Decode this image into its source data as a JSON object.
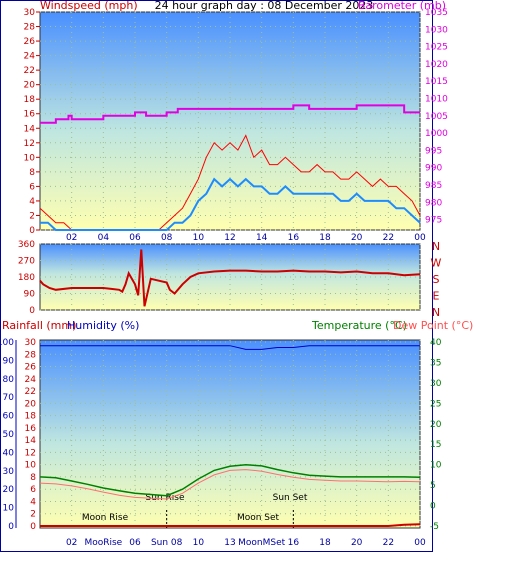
{
  "header": {
    "wind_label": "Windspeed (mph)",
    "title": "24 hour graph day : 08 December 2023",
    "baro_label": "Barometer (mb)"
  },
  "lower_header": {
    "rain_label": "Rainfall (mm)",
    "humidity_label": "Humidity (%)",
    "temp_label": "Temperature (°C)",
    "dew_label": "Dew Point (°C)"
  },
  "colors": {
    "wind": "#ff0000",
    "gust": "#ff0000",
    "avg": "#1e8cff",
    "baro": "#e000e0",
    "humidity": "#0000c0",
    "temperature": "#008000",
    "dewpoint": "#ff7070",
    "rain": "#cc0000",
    "sky_top": "#4a90ff",
    "sky_bottom": "#ffffb0"
  },
  "astro": {
    "moon_rise_label": "Moon Rise",
    "moon_set_label": "Moon Set",
    "sun_rise_label": "Sun Rise",
    "sun_set_label": "Sun Set",
    "moon_rise_tick": "MooRise",
    "moon_set_tick": "MooSet",
    "sun_rise_tick": "Sun Rise",
    "sun_rise_hour": 8.0,
    "sun_set_hour": 16.0
  },
  "chart_data": [
    {
      "type": "line",
      "name": "wind",
      "x_ticks": [
        "02",
        "04",
        "06",
        "08",
        "10",
        "12",
        "14",
        "16",
        "18",
        "20",
        "22",
        "00"
      ],
      "x_range": [
        0,
        24
      ],
      "y_left_ticks": [
        "0",
        "2",
        "4",
        "6",
        "8",
        "10",
        "12",
        "14",
        "16",
        "18",
        "20",
        "22",
        "24",
        "26",
        "28",
        "30"
      ],
      "y_left_range": [
        0,
        30
      ],
      "y_right_ticks": [
        "975",
        "980",
        "985",
        "990",
        "995",
        "1000",
        "1005",
        "1010",
        "1015",
        "1020",
        "1025",
        "1030",
        "1035"
      ],
      "y_right_range": [
        972,
        1035
      ],
      "gust_hours": [
        0,
        0.5,
        1,
        1.5,
        2,
        2.5,
        3,
        3.5,
        4,
        4.5,
        5,
        5.5,
        6,
        6.5,
        7,
        7.5,
        8,
        8.5,
        9,
        9.5,
        10,
        10.5,
        11,
        11.5,
        12,
        12.5,
        13,
        13.5,
        14,
        14.5,
        15,
        15.5,
        16,
        16.5,
        17,
        17.5,
        18,
        18.5,
        19,
        19.5,
        20,
        20.5,
        21,
        21.5,
        22,
        22.5,
        23,
        23.5,
        24
      ],
      "gust_values": [
        3,
        2,
        1,
        1,
        0,
        0,
        0,
        0,
        0,
        0,
        0,
        0,
        0,
        0,
        0,
        0,
        1,
        2,
        3,
        5,
        7,
        10,
        12,
        11,
        12,
        11,
        13,
        10,
        11,
        9,
        9,
        10,
        9,
        8,
        8,
        9,
        8,
        8,
        7,
        7,
        8,
        7,
        6,
        7,
        6,
        6,
        5,
        4,
        2
      ],
      "avg_values": [
        1,
        1,
        0,
        0,
        0,
        0,
        0,
        0,
        0,
        0,
        0,
        0,
        0,
        0,
        0,
        0,
        0,
        1,
        1,
        2,
        4,
        5,
        7,
        6,
        7,
        6,
        7,
        6,
        6,
        5,
        5,
        6,
        5,
        5,
        5,
        5,
        5,
        5,
        4,
        4,
        5,
        4,
        4,
        4,
        4,
        3,
        3,
        2,
        1
      ],
      "baro_hours": [
        0,
        1,
        1.8,
        2,
        3.2,
        4,
        5.3,
        6,
        6.7,
        7,
        8,
        8.7,
        10,
        11,
        12,
        13,
        14,
        15,
        16,
        16.5,
        17,
        18,
        19,
        20,
        21,
        22,
        23,
        24
      ],
      "baro_values": [
        1003,
        1004,
        1005,
        1004,
        1004,
        1005,
        1005,
        1006,
        1005,
        1005,
        1006,
        1007,
        1007,
        1007,
        1007,
        1007,
        1007,
        1007,
        1008,
        1008,
        1007,
        1007,
        1007,
        1008,
        1008,
        1008,
        1006,
        1006
      ]
    },
    {
      "type": "line",
      "name": "wind_direction",
      "y_ticks": [
        "0",
        "90",
        "180",
        "270",
        "360"
      ],
      "y_range": [
        0,
        360
      ],
      "right_labels": [
        "N",
        "W",
        "S",
        "E",
        "N"
      ],
      "hours": [
        0,
        0.2,
        0.6,
        1,
        2,
        3,
        4,
        4.5,
        5,
        5.2,
        5.4,
        5.6,
        6,
        6.2,
        6.4,
        6.6,
        7,
        7.5,
        8,
        8.2,
        8.5,
        9,
        9.5,
        10,
        11,
        12,
        13,
        14,
        15,
        16,
        17,
        18,
        19,
        20,
        21,
        22,
        23,
        24
      ],
      "values": [
        160,
        140,
        120,
        110,
        120,
        120,
        120,
        115,
        110,
        100,
        140,
        200,
        140,
        80,
        330,
        20,
        170,
        160,
        150,
        110,
        90,
        140,
        180,
        200,
        210,
        215,
        215,
        210,
        210,
        215,
        210,
        210,
        205,
        210,
        200,
        200,
        190,
        195
      ]
    },
    {
      "type": "line",
      "name": "temperature_humidity_rain",
      "x_ticks": [
        "02",
        "MooRise",
        "06",
        "Sun 08",
        "10",
        "13",
        "MoonMSet",
        "16",
        "18",
        "20",
        "22",
        "00"
      ],
      "left_humidity_ticks": [
        "0",
        "10",
        "20",
        "30",
        "40",
        "50",
        "60",
        "70",
        "80",
        "90",
        "100"
      ],
      "humidity_range": [
        0,
        100
      ],
      "left_rain_ticks": [
        "0",
        "2",
        "4",
        "6",
        "8",
        "10",
        "12",
        "14",
        "16",
        "18",
        "20",
        "22",
        "24",
        "26",
        "28",
        "30"
      ],
      "rain_range": [
        0,
        30
      ],
      "right_temp_ticks": [
        "-5",
        "0",
        "5",
        "10",
        "15",
        "20",
        "25",
        "30",
        "35",
        "40"
      ],
      "temp_range": [
        -5,
        40
      ],
      "hours": [
        0,
        1,
        2,
        3,
        4,
        5,
        6,
        7,
        8,
        9,
        10,
        11,
        12,
        13,
        14,
        15,
        16,
        17,
        18,
        19,
        20,
        21,
        22,
        23,
        24
      ],
      "temperature": [
        7,
        6.8,
        6,
        5.2,
        4.3,
        3.6,
        3.0,
        2.7,
        2.4,
        4,
        6.5,
        8.6,
        9.6,
        10,
        9.7,
        8.8,
        8,
        7.4,
        7.2,
        7,
        7,
        7,
        7,
        7,
        6.9
      ],
      "dewpoint": [
        5.5,
        5.3,
        4.8,
        4.1,
        3.3,
        2.5,
        2.0,
        1.8,
        1.6,
        3.0,
        5.5,
        7.5,
        8.6,
        8.8,
        8.4,
        7.6,
        6.9,
        6.4,
        6.2,
        6.0,
        6.0,
        5.9,
        5.8,
        5.9,
        5.8
      ],
      "humidity": [
        98,
        98,
        98,
        98,
        98,
        98,
        98,
        98,
        98,
        98,
        98,
        98,
        98,
        96,
        96,
        97,
        97,
        98,
        98,
        98,
        98,
        98,
        98,
        98,
        98
      ],
      "rainfall_total": [
        0,
        0,
        0,
        0,
        0,
        0,
        0,
        0,
        0,
        0,
        0,
        0,
        0,
        0,
        0,
        0,
        0,
        0,
        0,
        0,
        0,
        0,
        0,
        0.2,
        0.3
      ]
    }
  ]
}
